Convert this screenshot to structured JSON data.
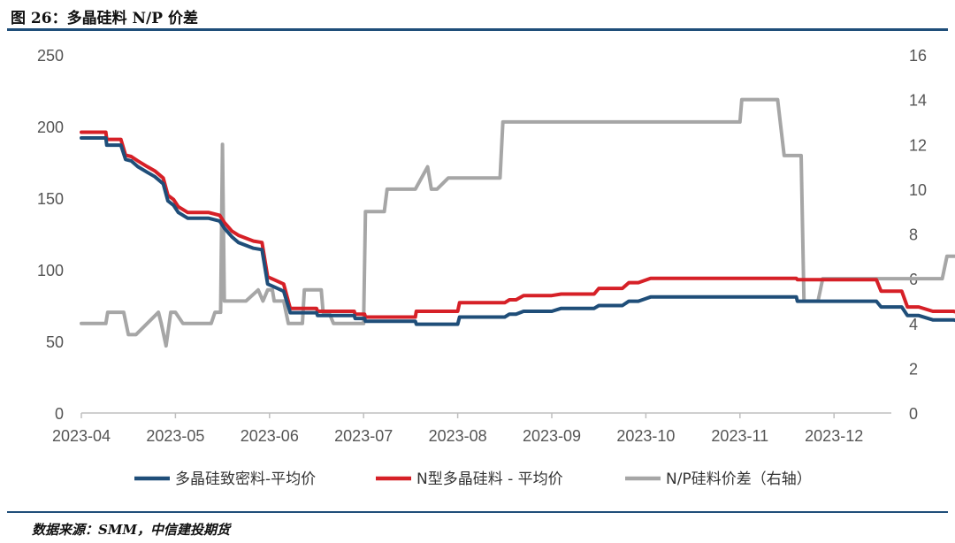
{
  "header": {
    "title": "图 26：多晶硅料 N/P 价差"
  },
  "footer": {
    "source": "数据来源：SMM，中信建投期货"
  },
  "chart_data": {
    "type": "line",
    "x_unit": "months since 2023-04",
    "xticks": [
      "2023-04",
      "2023-05",
      "2023-06",
      "2023-07",
      "2023-08",
      "2023-09",
      "2023-10",
      "2023-11",
      "2023-12"
    ],
    "y_left": {
      "ylim": [
        0,
        250
      ],
      "ticks": [
        "0",
        "50",
        "100",
        "150",
        "200",
        "250"
      ]
    },
    "y_right": {
      "ylim": [
        0,
        16
      ],
      "ticks": [
        "0",
        "2",
        "4",
        "6",
        "8",
        "10",
        "12",
        "14",
        "16"
      ]
    },
    "grid": false,
    "legend_position": "bottom",
    "series": [
      {
        "name": "多晶硅致密料-平均价",
        "axis": "left",
        "color": "#1f4e79",
        "points": [
          [
            0,
            192
          ],
          [
            0.26,
            192
          ],
          [
            0.27,
            187
          ],
          [
            0.42,
            187
          ],
          [
            0.47,
            177
          ],
          [
            0.53,
            176
          ],
          [
            0.6,
            172
          ],
          [
            0.7,
            168
          ],
          [
            0.78,
            165
          ],
          [
            0.87,
            160
          ],
          [
            0.92,
            148
          ],
          [
            0.98,
            145
          ],
          [
            1.03,
            140
          ],
          [
            1.13,
            136
          ],
          [
            1.35,
            136
          ],
          [
            1.47,
            134
          ],
          [
            1.52,
            129
          ],
          [
            1.6,
            123
          ],
          [
            1.67,
            119
          ],
          [
            1.75,
            117
          ],
          [
            1.83,
            115
          ],
          [
            1.92,
            114
          ],
          [
            1.98,
            90
          ],
          [
            2.05,
            88
          ],
          [
            2.15,
            85
          ],
          [
            2.22,
            70
          ],
          [
            2.5,
            70
          ],
          [
            2.51,
            68
          ],
          [
            2.9,
            68
          ],
          [
            2.91,
            66
          ],
          [
            3.01,
            66
          ],
          [
            3.02,
            64
          ],
          [
            3.55,
            64
          ],
          [
            3.56,
            62
          ],
          [
            3.68,
            62
          ],
          [
            4,
            62
          ],
          [
            4.02,
            67
          ],
          [
            4.5,
            67
          ],
          [
            4.55,
            69
          ],
          [
            4.62,
            69
          ],
          [
            4.7,
            71
          ],
          [
            5,
            71
          ],
          [
            5.1,
            73
          ],
          [
            5.45,
            73
          ],
          [
            5.5,
            75
          ],
          [
            5.75,
            75
          ],
          [
            5.82,
            78
          ],
          [
            5.92,
            78
          ],
          [
            6.05,
            81
          ],
          [
            6.5,
            81
          ],
          [
            7,
            81
          ],
          [
            7.5,
            81
          ],
          [
            7.6,
            81
          ],
          [
            7.61,
            78
          ],
          [
            8,
            78
          ],
          [
            8.45,
            78
          ],
          [
            8.5,
            74
          ],
          [
            8.72,
            74
          ],
          [
            8.78,
            68
          ],
          [
            8.9,
            68
          ],
          [
            9.05,
            65
          ],
          [
            9.27,
            65
          ],
          [
            9.33,
            64
          ],
          [
            9.5,
            64
          ],
          [
            9.6,
            63
          ],
          [
            9.95,
            63
          ],
          [
            10.05,
            62
          ],
          [
            10.3,
            62
          ],
          [
            10.35,
            61
          ],
          [
            10.5,
            61
          ],
          [
            10.53,
            60
          ],
          [
            10.9,
            60
          ]
        ]
      },
      {
        "name": "N型多晶硅料 - 平均价",
        "axis": "left",
        "color": "#d62027",
        "points": [
          [
            0,
            196
          ],
          [
            0.26,
            196
          ],
          [
            0.27,
            191
          ],
          [
            0.42,
            191
          ],
          [
            0.47,
            180
          ],
          [
            0.53,
            179
          ],
          [
            0.6,
            176
          ],
          [
            0.7,
            172
          ],
          [
            0.78,
            169
          ],
          [
            0.87,
            164
          ],
          [
            0.92,
            152
          ],
          [
            0.98,
            149
          ],
          [
            1.03,
            144
          ],
          [
            1.13,
            140
          ],
          [
            1.35,
            140
          ],
          [
            1.47,
            138
          ],
          [
            1.52,
            133
          ],
          [
            1.6,
            127
          ],
          [
            1.67,
            124
          ],
          [
            1.75,
            122
          ],
          [
            1.83,
            120
          ],
          [
            1.92,
            119
          ],
          [
            1.98,
            95
          ],
          [
            2.05,
            93
          ],
          [
            2.15,
            90
          ],
          [
            2.22,
            73
          ],
          [
            2.5,
            73
          ],
          [
            2.51,
            71
          ],
          [
            2.9,
            71
          ],
          [
            2.91,
            69
          ],
          [
            3.01,
            69
          ],
          [
            3.02,
            67
          ],
          [
            3.55,
            67
          ],
          [
            3.56,
            71
          ],
          [
            3.68,
            71
          ],
          [
            4,
            71
          ],
          [
            4.02,
            77
          ],
          [
            4.5,
            77
          ],
          [
            4.55,
            79
          ],
          [
            4.62,
            79
          ],
          [
            4.7,
            82
          ],
          [
            5,
            82
          ],
          [
            5.1,
            83
          ],
          [
            5.45,
            83
          ],
          [
            5.5,
            87
          ],
          [
            5.75,
            87
          ],
          [
            5.82,
            91
          ],
          [
            5.92,
            91
          ],
          [
            6.05,
            94
          ],
          [
            6.5,
            94
          ],
          [
            7,
            94
          ],
          [
            7.5,
            94
          ],
          [
            7.6,
            94
          ],
          [
            7.61,
            93
          ],
          [
            8,
            93
          ],
          [
            8.45,
            93
          ],
          [
            8.5,
            85
          ],
          [
            8.72,
            85
          ],
          [
            8.78,
            74
          ],
          [
            8.9,
            74
          ],
          [
            9.05,
            71
          ],
          [
            9.27,
            71
          ],
          [
            9.33,
            70
          ],
          [
            9.5,
            70
          ],
          [
            9.6,
            69
          ],
          [
            9.95,
            69
          ],
          [
            10.05,
            69
          ],
          [
            10.3,
            69
          ],
          [
            10.35,
            69
          ],
          [
            10.5,
            69
          ],
          [
            10.53,
            69
          ],
          [
            10.9,
            69
          ]
        ]
      },
      {
        "name": "N/P硅料价差（右轴）",
        "axis": "right",
        "color": "#a6a6a6",
        "points": [
          [
            0,
            4
          ],
          [
            0.26,
            4
          ],
          [
            0.28,
            4.5
          ],
          [
            0.45,
            4.5
          ],
          [
            0.5,
            3.5
          ],
          [
            0.58,
            3.5
          ],
          [
            0.82,
            4.5
          ],
          [
            0.85,
            4.0
          ],
          [
            0.9,
            3.0
          ],
          [
            0.95,
            4.5
          ],
          [
            1.0,
            4.5
          ],
          [
            1.08,
            4.0
          ],
          [
            1.38,
            4.0
          ],
          [
            1.42,
            4.5
          ],
          [
            1.48,
            4.5
          ],
          [
            1.5,
            12.0
          ],
          [
            1.52,
            5.0
          ],
          [
            1.75,
            5.0
          ],
          [
            1.88,
            5.5
          ],
          [
            1.93,
            5.0
          ],
          [
            1.98,
            5.5
          ],
          [
            2.03,
            5.5
          ],
          [
            2.05,
            5.0
          ],
          [
            2.15,
            5.0
          ],
          [
            2.2,
            4.0
          ],
          [
            2.35,
            4.0
          ],
          [
            2.37,
            5.5
          ],
          [
            2.55,
            5.5
          ],
          [
            2.57,
            4.5
          ],
          [
            2.63,
            4.5
          ],
          [
            2.68,
            4.0
          ],
          [
            3.0,
            4.0
          ],
          [
            3.02,
            9.0
          ],
          [
            3.22,
            9.0
          ],
          [
            3.25,
            10.0
          ],
          [
            3.55,
            10.0
          ],
          [
            3.68,
            11.0
          ],
          [
            3.72,
            10.0
          ],
          [
            3.78,
            10.0
          ],
          [
            3.9,
            10.5
          ],
          [
            4.45,
            10.5
          ],
          [
            4.48,
            13.0
          ],
          [
            5.5,
            13.0
          ],
          [
            5.75,
            13.0
          ],
          [
            6.0,
            13.0
          ],
          [
            6.5,
            13.0
          ],
          [
            7.0,
            13.0
          ],
          [
            7.02,
            14.0
          ],
          [
            7.4,
            14.0
          ],
          [
            7.47,
            11.5
          ],
          [
            7.65,
            11.5
          ],
          [
            7.68,
            5.0
          ],
          [
            7.83,
            5.0
          ],
          [
            7.88,
            6.0
          ],
          [
            8.5,
            6.0
          ],
          [
            9.0,
            6.0
          ],
          [
            9.15,
            6.0
          ],
          [
            9.2,
            7.0
          ],
          [
            9.4,
            7.0
          ],
          [
            9.45,
            8.0
          ],
          [
            9.85,
            8.0
          ]
        ]
      }
    ]
  }
}
